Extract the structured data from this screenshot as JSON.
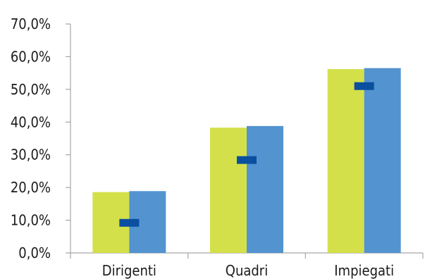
{
  "chart_data": {
    "type": "bar",
    "categories": [
      "Dirigenti",
      "Quadri",
      "Impiegati"
    ],
    "series": [
      {
        "values": [
          18.6,
          38.3,
          56.2
        ],
        "color": "#d4e04a"
      },
      {
        "values": [
          18.9,
          38.8,
          56.5
        ],
        "color": "#5393d0"
      }
    ],
    "markers": {
      "values": [
        9.2,
        28.4,
        51.0
      ],
      "color": "#0a4fa0"
    },
    "ylim": [
      0,
      70
    ],
    "y_ticks": [
      "0,0%",
      "10,0%",
      "20,0%",
      "30,0%",
      "40,0%",
      "50,0%",
      "60,0%",
      "70,0%"
    ],
    "grid": false,
    "title": "",
    "xlabel": "",
    "ylabel": ""
  }
}
